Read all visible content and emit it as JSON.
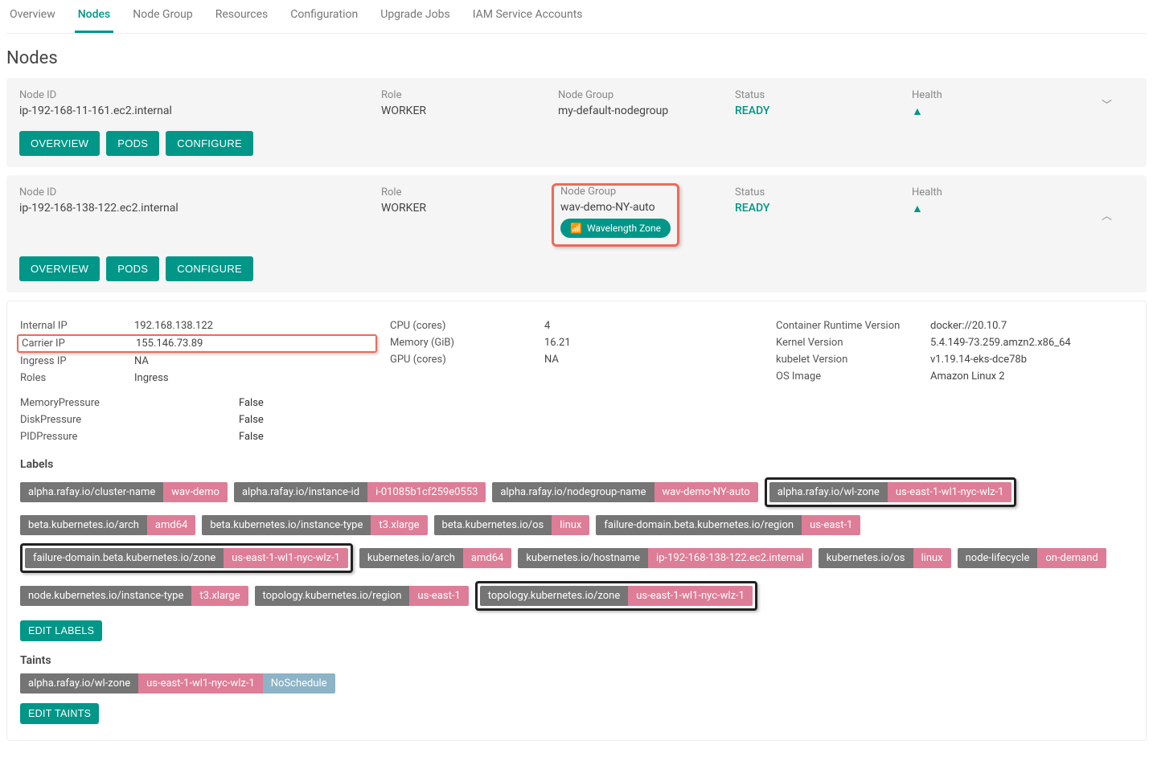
{
  "tabs": [
    "Overview",
    "Nodes",
    "Node Group",
    "Resources",
    "Configuration",
    "Upgrade Jobs",
    "IAM Service Accounts"
  ],
  "active_tab_index": 1,
  "page_title": "Nodes",
  "colors": {
    "accent": "#009688",
    "chip_key_bg": "#757575",
    "chip_val_bg": "#de7d97",
    "chip_effect_bg": "#8db3c6",
    "highlight_red": "#ed6a5a",
    "highlight_black": "#222222",
    "card_bg": "#f5f5f5"
  },
  "buttons": {
    "overview": "OVERVIEW",
    "pods": "PODS",
    "configure": "CONFIGURE",
    "edit_labels": "EDIT LABELS",
    "edit_taints": "EDIT TAINTS"
  },
  "head_labels": {
    "node_id": "Node ID",
    "role": "Role",
    "node_group": "Node Group",
    "status": "Status",
    "health": "Health"
  },
  "nodes": [
    {
      "node_id": "ip-192-168-11-161.ec2.internal",
      "role": "WORKER",
      "node_group": "my-default-nodegroup",
      "status": "READY",
      "expanded": false,
      "wavelength_badge": null
    },
    {
      "node_id": "ip-192-168-138-122.ec2.internal",
      "role": "WORKER",
      "node_group": "wav-demo-NY-auto",
      "status": "READY",
      "expanded": true,
      "wavelength_badge": "Wavelength Zone",
      "nodegroup_highlight": true,
      "details": {
        "col1": [
          {
            "k": "Internal IP",
            "v": "192.168.138.122",
            "hl": false
          },
          {
            "k": "Carrier IP",
            "v": "155.146.73.89",
            "hl": true
          },
          {
            "k": "Ingress IP",
            "v": "NA",
            "hl": false
          },
          {
            "k": "Roles",
            "v": "Ingress",
            "hl": false
          }
        ],
        "bools": [
          {
            "k": "MemoryPressure",
            "v": "False"
          },
          {
            "k": "DiskPressure",
            "v": "False"
          },
          {
            "k": "PIDPressure",
            "v": "False"
          }
        ],
        "col2": [
          {
            "k": "CPU (cores)",
            "v": "4"
          },
          {
            "k": "Memory (GiB)",
            "v": "16.21"
          },
          {
            "k": "GPU (cores)",
            "v": "NA"
          }
        ],
        "col3": [
          {
            "k": "Container Runtime Version",
            "v": "docker://20.10.7"
          },
          {
            "k": "Kernel Version",
            "v": "5.4.149-73.259.amzn2.x86_64"
          },
          {
            "k": "kubelet Version",
            "v": "v1.19.14-eks-dce78b"
          },
          {
            "k": "OS Image",
            "v": "Amazon Linux 2"
          }
        ],
        "labels_title": "Labels",
        "labels": [
          {
            "k": "alpha.rafay.io/cluster-name",
            "v": "wav-demo",
            "hl": false
          },
          {
            "k": "alpha.rafay.io/instance-id",
            "v": "i-01085b1cf259e0553",
            "hl": false
          },
          {
            "k": "alpha.rafay.io/nodegroup-name",
            "v": "wav-demo-NY-auto",
            "hl": false
          },
          {
            "k": "alpha.rafay.io/wl-zone",
            "v": "us-east-1-wl1-nyc-wlz-1",
            "hl": true
          },
          {
            "k": "beta.kubernetes.io/arch",
            "v": "amd64",
            "hl": false
          },
          {
            "k": "beta.kubernetes.io/instance-type",
            "v": "t3.xlarge",
            "hl": false
          },
          {
            "k": "beta.kubernetes.io/os",
            "v": "linux",
            "hl": false
          },
          {
            "k": "failure-domain.beta.kubernetes.io/region",
            "v": "us-east-1",
            "hl": false
          },
          {
            "k": "failure-domain.beta.kubernetes.io/zone",
            "v": "us-east-1-wl1-nyc-wlz-1",
            "hl": true
          },
          {
            "k": "kubernetes.io/arch",
            "v": "amd64",
            "hl": false
          },
          {
            "k": "kubernetes.io/hostname",
            "v": "ip-192-168-138-122.ec2.internal",
            "hl": false
          },
          {
            "k": "kubernetes.io/os",
            "v": "linux",
            "hl": false
          },
          {
            "k": "node-lifecycle",
            "v": "on-demand",
            "hl": false
          },
          {
            "k": "node.kubernetes.io/instance-type",
            "v": "t3.xlarge",
            "hl": false
          },
          {
            "k": "topology.kubernetes.io/region",
            "v": "us-east-1",
            "hl": false
          },
          {
            "k": "topology.kubernetes.io/zone",
            "v": "us-east-1-wl1-nyc-wlz-1",
            "hl": true
          }
        ],
        "taints_title": "Taints",
        "taints": [
          {
            "k": "alpha.rafay.io/wl-zone",
            "v": "us-east-1-wl1-nyc-wlz-1",
            "e": "NoSchedule"
          }
        ]
      }
    }
  ]
}
